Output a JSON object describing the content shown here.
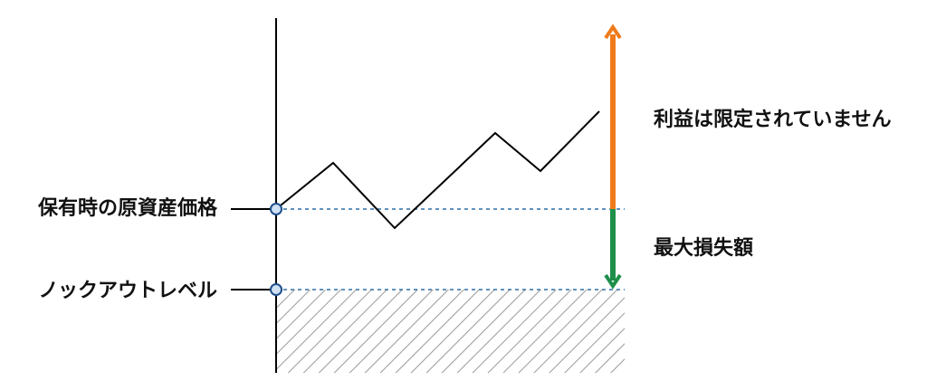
{
  "labels": {
    "underlying_price": "保有時の原資産価格",
    "knockout_level": "ノックアウトレベル",
    "profit": "利益は限定されていません",
    "max_loss": "最大損失額"
  }
}
